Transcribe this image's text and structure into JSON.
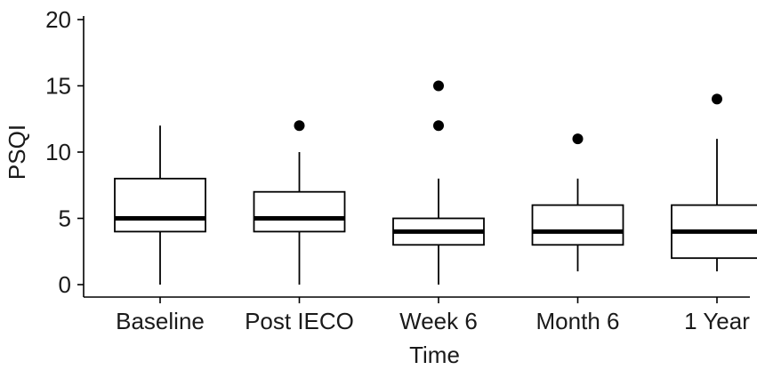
{
  "chart_data": {
    "type": "boxplot",
    "xlabel": "Time",
    "ylabel": "PSQI",
    "ylim": [
      0,
      20
    ],
    "yticks": [
      0,
      5,
      10,
      15,
      20
    ],
    "grid": false,
    "categories": [
      "Baseline",
      "Post IECO",
      "Week 6",
      "Month 6",
      "1 Year"
    ],
    "boxes": [
      {
        "category": "Baseline",
        "whisker_low": 0,
        "q1": 4,
        "median": 5,
        "q3": 8,
        "whisker_high": 12,
        "outliers": []
      },
      {
        "category": "Post IECO",
        "whisker_low": 0,
        "q1": 4,
        "median": 5,
        "q3": 7,
        "whisker_high": 10,
        "outliers": [
          12
        ]
      },
      {
        "category": "Week 6",
        "whisker_low": 0,
        "q1": 3,
        "median": 4,
        "q3": 5,
        "whisker_high": 8,
        "outliers": [
          12,
          15
        ]
      },
      {
        "category": "Month 6",
        "whisker_low": 1,
        "q1": 3,
        "median": 4,
        "q3": 6,
        "whisker_high": 8,
        "outliers": [
          11
        ]
      },
      {
        "category": "1 Year",
        "whisker_low": 1,
        "q1": 2,
        "median": 4,
        "q3": 6,
        "whisker_high": 11,
        "outliers": [
          14
        ]
      }
    ]
  }
}
